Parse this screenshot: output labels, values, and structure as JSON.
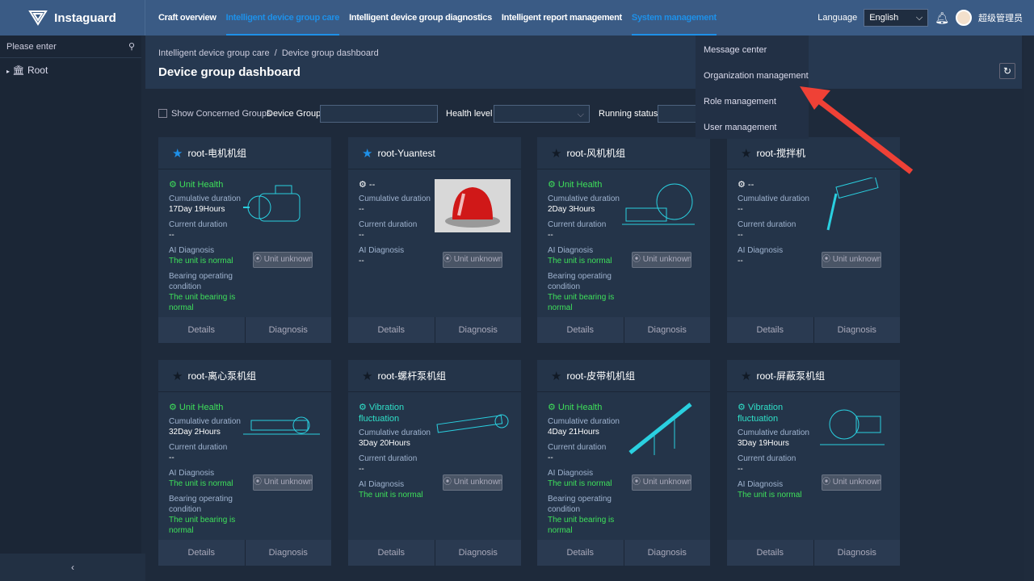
{
  "app": {
    "name": "Instaguard"
  },
  "nav": [
    {
      "label": "Craft overview",
      "active": false
    },
    {
      "label": "Intelligent device group care",
      "active": true
    },
    {
      "label": "Intelligent device group diagnostics",
      "active": false
    },
    {
      "label": "Intelligent report management",
      "active": false
    },
    {
      "label": "System management",
      "active": true
    }
  ],
  "header": {
    "language_label": "Language",
    "language_value": "English",
    "user": "超级管理员"
  },
  "sidebar": {
    "search_placeholder": "Please enter",
    "tree_root": "Root"
  },
  "page": {
    "breadcrumb": "Intelligent device group care  /  Device group dashboard",
    "title": "Device group dashboard"
  },
  "filters": {
    "show_concerned": "Show Concerned Groups",
    "device_group": "Device Group",
    "health_level": "Health level",
    "running_status": "Running status"
  },
  "system_menu": [
    "Message center",
    "Organization management",
    "Role management",
    "User management"
  ],
  "labels": {
    "cumulative": "Cumulative duration",
    "current": "Current duration",
    "ai": "AI Diagnosis",
    "bearing": "Bearing operating condition",
    "unknown": "Unit unknown",
    "details": "Details",
    "diagnosis": "Diagnosis"
  },
  "colors": {
    "health": "#3ee05a",
    "vibration": "#2fe0c8",
    "accent": "#1e90e8"
  },
  "cards": [
    {
      "name": "root-电机机组",
      "starred": true,
      "status": "Unit Health",
      "status_type": "health",
      "cumulative": "17Day 19Hours",
      "current": "--",
      "ai": "The unit is normal",
      "bearing": "The unit bearing is normal",
      "image": "motor"
    },
    {
      "name": "root-Yuantest",
      "starred": true,
      "status": "--",
      "status_type": "none",
      "cumulative": "--",
      "current": "--",
      "ai": "--",
      "bearing": null,
      "image": "alarm-light"
    },
    {
      "name": "root-风机机组",
      "starred": false,
      "status": "Unit Health",
      "status_type": "health",
      "cumulative": "2Day 3Hours",
      "current": "--",
      "ai": "The unit is normal",
      "bearing": "The unit bearing is normal",
      "image": "fan"
    },
    {
      "name": "root-搅拌机",
      "starred": false,
      "status": "--",
      "status_type": "none",
      "cumulative": "--",
      "current": "--",
      "ai": "--",
      "bearing": null,
      "image": "mixer"
    },
    {
      "name": "root-离心泵机组",
      "starred": false,
      "status": "Unit Health",
      "status_type": "health",
      "cumulative": "32Day 2Hours",
      "current": "--",
      "ai": "The unit is normal",
      "bearing": "The unit bearing is normal",
      "image": "pump"
    },
    {
      "name": "root-螺杆泵机组",
      "starred": false,
      "status": "Vibration fluctuation",
      "status_type": "vibration",
      "cumulative": "3Day 20Hours",
      "current": "--",
      "ai": "The unit is normal",
      "bearing": null,
      "image": "screw-pump"
    },
    {
      "name": "root-皮带机机组",
      "starred": false,
      "status": "Unit Health",
      "status_type": "health",
      "cumulative": "4Day 21Hours",
      "current": "--",
      "ai": "The unit is normal",
      "bearing": "The unit bearing is normal",
      "image": "conveyor"
    },
    {
      "name": "root-屏蔽泵机组",
      "starred": false,
      "status": "Vibration fluctuation",
      "status_type": "vibration",
      "cumulative": "3Day 19Hours",
      "current": "--",
      "ai": "The unit is normal",
      "bearing": null,
      "image": "canned-pump"
    }
  ]
}
